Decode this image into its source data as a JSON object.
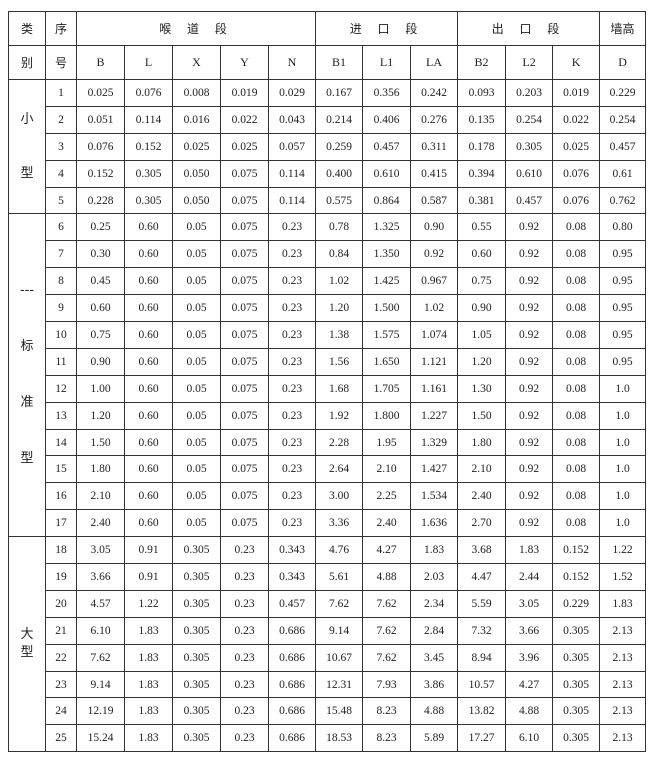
{
  "header": {
    "category": [
      "类",
      "别"
    ],
    "index": [
      "序",
      "号"
    ],
    "groups": [
      "喉 道 段",
      "进 口 段",
      "出 口 段",
      "墙高"
    ],
    "columns": [
      "B",
      "L",
      "X",
      "Y",
      "N",
      "B1",
      "L1",
      "LA",
      "B2",
      "L2",
      "K",
      "D"
    ]
  },
  "categories": [
    {
      "chars": [
        "小",
        "型"
      ],
      "rows": 5
    },
    {
      "chars": [
        "---",
        "标",
        "准",
        "型"
      ],
      "rows": 12
    },
    {
      "chars": [
        "大",
        "型"
      ],
      "rows": 8
    }
  ],
  "rows": [
    [
      "1",
      "0.025",
      "0.076",
      "0.008",
      "0.019",
      "0.029",
      "0.167",
      "0.356",
      "0.242",
      "0.093",
      "0.203",
      "0.019",
      "0.229"
    ],
    [
      "2",
      "0.051",
      "0.114",
      "0.016",
      "0.022",
      "0.043",
      "0.214",
      "0.406",
      "0.276",
      "0.135",
      "0.254",
      "0.022",
      "0.254"
    ],
    [
      "3",
      "0.076",
      "0.152",
      "0.025",
      "0.025",
      "0.057",
      "0.259",
      "0.457",
      "0.311",
      "0.178",
      "0.305",
      "0.025",
      "0.457"
    ],
    [
      "4",
      "0.152",
      "0.305",
      "0.050",
      "0.075",
      "0.114",
      "0.400",
      "0.610",
      "0.415",
      "0.394",
      "0.610",
      "0.076",
      "0.61"
    ],
    [
      "5",
      "0.228",
      "0.305",
      "0.050",
      "0.075",
      "0.114",
      "0.575",
      "0.864",
      "0.587",
      "0.381",
      "0.457",
      "0.076",
      "0.762"
    ],
    [
      "6",
      "0.25",
      "0.60",
      "0.05",
      "0.075",
      "0.23",
      "0.78",
      "1.325",
      "0.90",
      "0.55",
      "0.92",
      "0.08",
      "0.80"
    ],
    [
      "7",
      "0.30",
      "0.60",
      "0.05",
      "0.075",
      "0.23",
      "0.84",
      "1.350",
      "0.92",
      "0.60",
      "0.92",
      "0.08",
      "0.95"
    ],
    [
      "8",
      "0.45",
      "0.60",
      "0.05",
      "0.075",
      "0.23",
      "1.02",
      "1.425",
      "0.967",
      "0.75",
      "0.92",
      "0.08",
      "0.95"
    ],
    [
      "9",
      "0.60",
      "0.60",
      "0.05",
      "0.075",
      "0.23",
      "1.20",
      "1.500",
      "1.02",
      "0.90",
      "0.92",
      "0.08",
      "0.95"
    ],
    [
      "10",
      "0.75",
      "0.60",
      "0.05",
      "0.075",
      "0.23",
      "1.38",
      "1.575",
      "1.074",
      "1.05",
      "0.92",
      "0.08",
      "0.95"
    ],
    [
      "11",
      "0.90",
      "0.60",
      "0.05",
      "0.075",
      "0.23",
      "1.56",
      "1.650",
      "1.121",
      "1.20",
      "0.92",
      "0.08",
      "0.95"
    ],
    [
      "12",
      "1.00",
      "0.60",
      "0.05",
      "0.075",
      "0.23",
      "1.68",
      "1.705",
      "1.161",
      "1.30",
      "0.92",
      "0.08",
      "1.0"
    ],
    [
      "13",
      "1.20",
      "0.60",
      "0.05",
      "0.075",
      "0.23",
      "1.92",
      "1.800",
      "1.227",
      "1.50",
      "0.92",
      "0.08",
      "1.0"
    ],
    [
      "14",
      "1.50",
      "0.60",
      "0.05",
      "0.075",
      "0.23",
      "2.28",
      "1.95",
      "1.329",
      "1.80",
      "0.92",
      "0.08",
      "1.0"
    ],
    [
      "15",
      "1.80",
      "0.60",
      "0.05",
      "0.075",
      "0.23",
      "2.64",
      "2.10",
      "1.427",
      "2.10",
      "0.92",
      "0.08",
      "1.0"
    ],
    [
      "16",
      "2.10",
      "0.60",
      "0.05",
      "0.075",
      "0.23",
      "3.00",
      "2.25",
      "1.534",
      "2.40",
      "0.92",
      "0.08",
      "1.0"
    ],
    [
      "17",
      "2.40",
      "0.60",
      "0.05",
      "0.075",
      "0.23",
      "3.36",
      "2.40",
      "1.636",
      "2.70",
      "0.92",
      "0.08",
      "1.0"
    ],
    [
      "18",
      "3.05",
      "0.91",
      "0.305",
      "0.23",
      "0.343",
      "4.76",
      "4.27",
      "1.83",
      "3.68",
      "1.83",
      "0.152",
      "1.22"
    ],
    [
      "19",
      "3.66",
      "0.91",
      "0.305",
      "0.23",
      "0.343",
      "5.61",
      "4.88",
      "2.03",
      "4.47",
      "2.44",
      "0.152",
      "1.52"
    ],
    [
      "20",
      "4.57",
      "1.22",
      "0.305",
      "0.23",
      "0.457",
      "7.62",
      "7.62",
      "2.34",
      "5.59",
      "3.05",
      "0.229",
      "1.83"
    ],
    [
      "21",
      "6.10",
      "1.83",
      "0.305",
      "0.23",
      "0.686",
      "9.14",
      "7.62",
      "2.84",
      "7.32",
      "3.66",
      "0.305",
      "2.13"
    ],
    [
      "22",
      "7.62",
      "1.83",
      "0.305",
      "0.23",
      "0.686",
      "10.67",
      "7.62",
      "3.45",
      "8.94",
      "3.96",
      "0.305",
      "2.13"
    ],
    [
      "23",
      "9.14",
      "1.83",
      "0.305",
      "0.23",
      "0.686",
      "12.31",
      "7.93",
      "3.86",
      "10.57",
      "4.27",
      "0.305",
      "2.13"
    ],
    [
      "24",
      "12.19",
      "1.83",
      "0.305",
      "0.23",
      "0.686",
      "15.48",
      "8.23",
      "4.88",
      "13.82",
      "4.88",
      "0.305",
      "2.13"
    ],
    [
      "25",
      "15.24",
      "1.83",
      "0.305",
      "0.23",
      "0.686",
      "18.53",
      "8.23",
      "5.89",
      "17.27",
      "6.10",
      "0.305",
      "2.13"
    ]
  ]
}
